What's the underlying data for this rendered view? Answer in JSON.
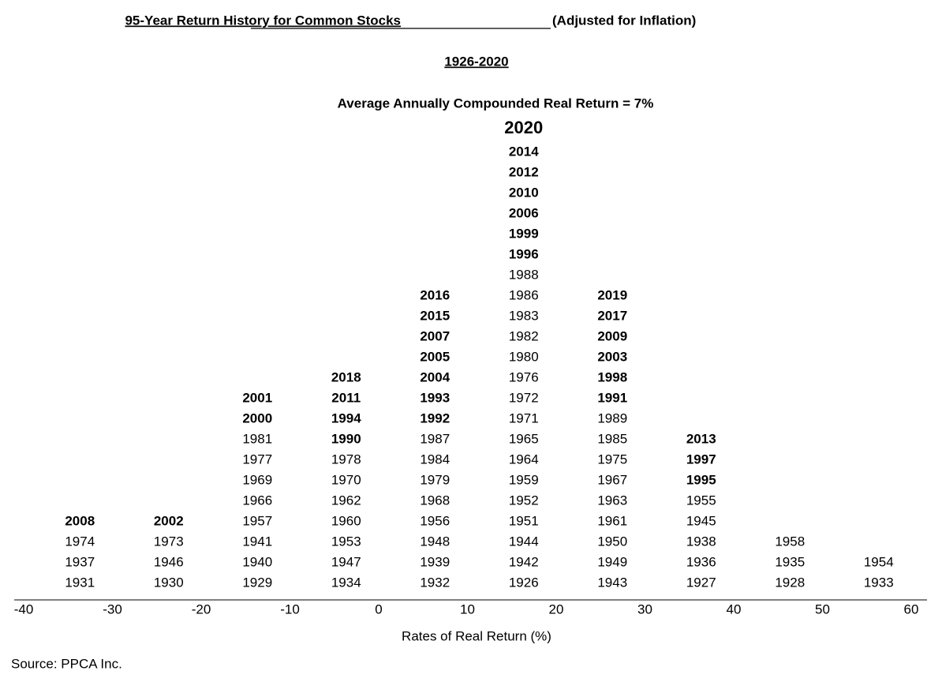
{
  "chart_data": {
    "type": "year-stack",
    "title": "95-Year Return History for Common Stocks",
    "title_suffix": "(Adjusted for Inflation)",
    "period": "1926-2020",
    "subtitle": "Average Annually Compounded Real Return = 7%",
    "x_label": "Rates of Real Return (%)",
    "source": "Source: PPCA Inc.",
    "xlim": [
      -40,
      60
    ],
    "xticks": [
      -40,
      -30,
      -20,
      -10,
      0,
      10,
      20,
      30,
      40,
      50,
      60
    ],
    "bins": [
      -40,
      -30,
      -20,
      -10,
      0,
      10,
      20,
      30,
      40,
      50,
      60
    ],
    "highlight_color": "#7030a0",
    "columns": [
      {
        "years": [
          "1931",
          "1937",
          "1974",
          "2008"
        ],
        "colors": [
          "#000000",
          "#000000",
          "#000000",
          "#3a6191"
        ]
      },
      {
        "years": [
          "1930",
          "1946",
          "1973",
          "2002"
        ],
        "colors": [
          "#000000",
          "#000000",
          "#000000",
          "#3a6191"
        ]
      },
      {
        "years": [
          "1929",
          "1940",
          "1941",
          "1957",
          "1966",
          "1969",
          "1977",
          "1981",
          "2000",
          "2001"
        ],
        "colors": [
          "#000000",
          "#000000",
          "#000000",
          "#000000",
          "#000000",
          "#000000",
          "#000000",
          "#000000",
          "#3a6191",
          "#3a6191"
        ]
      },
      {
        "years": [
          "1934",
          "1947",
          "1953",
          "1960",
          "1962",
          "1970",
          "1978",
          "1990",
          "1994",
          "2011",
          "2018"
        ],
        "colors": [
          "#000000",
          "#000000",
          "#000000",
          "#000000",
          "#000000",
          "#000000",
          "#000000",
          "#00ee00",
          "#00ee00",
          "#c00000",
          "#c00000"
        ]
      },
      {
        "years": [
          "1932",
          "1939",
          "1948",
          "1956",
          "1968",
          "1979",
          "1984",
          "1987",
          "1992",
          "1993",
          "2004",
          "2005",
          "2007",
          "2015",
          "2016"
        ],
        "colors": [
          "#000000",
          "#000000",
          "#000000",
          "#000000",
          "#000000",
          "#000000",
          "#000000",
          "#000000",
          "#00ee00",
          "#00ee00",
          "#3a6191",
          "#3a6191",
          "#3a6191",
          "#c00000",
          "#c00000"
        ]
      },
      {
        "years": [
          "1926",
          "1942",
          "1944",
          "1951",
          "1952",
          "1959",
          "1964",
          "1965",
          "1971",
          "1972",
          "1976",
          "1980",
          "1982",
          "1983",
          "1986",
          "1988",
          "1996",
          "1999",
          "2006",
          "2010",
          "2012",
          "2014",
          "2020"
        ],
        "colors": [
          "#000000",
          "#000000",
          "#000000",
          "#000000",
          "#000000",
          "#000000",
          "#000000",
          "#000000",
          "#000000",
          "#000000",
          "#000000",
          "#000000",
          "#000000",
          "#000000",
          "#000000",
          "#000000",
          "#00ee00",
          "#00ee00",
          "#3a6191",
          "#c00000",
          "#c00000",
          "#c00000",
          "#7030a0"
        ]
      },
      {
        "years": [
          "1943",
          "1949",
          "1950",
          "1961",
          "1963",
          "1967",
          "1975",
          "1985",
          "1989",
          "1991",
          "1998",
          "2003",
          "2009",
          "2017",
          "2019"
        ],
        "colors": [
          "#000000",
          "#000000",
          "#000000",
          "#000000",
          "#000000",
          "#000000",
          "#000000",
          "#000000",
          "#000000",
          "#00ee00",
          "#00ee00",
          "#3a6191",
          "#3a6191",
          "#c00000",
          "#c00000"
        ]
      },
      {
        "years": [
          "1927",
          "1936",
          "1938",
          "1945",
          "1955",
          "1995",
          "1997",
          "2013"
        ],
        "colors": [
          "#000000",
          "#000000",
          "#000000",
          "#000000",
          "#000000",
          "#00ee00",
          "#00ee00",
          "#c00000"
        ]
      },
      {
        "years": [
          "1928",
          "1935",
          "1958"
        ],
        "colors": [
          "#000000",
          "#000000",
          "#000000"
        ]
      },
      {
        "years": [
          "1933",
          "1954"
        ],
        "colors": [
          "#000000",
          "#000000"
        ]
      }
    ]
  }
}
